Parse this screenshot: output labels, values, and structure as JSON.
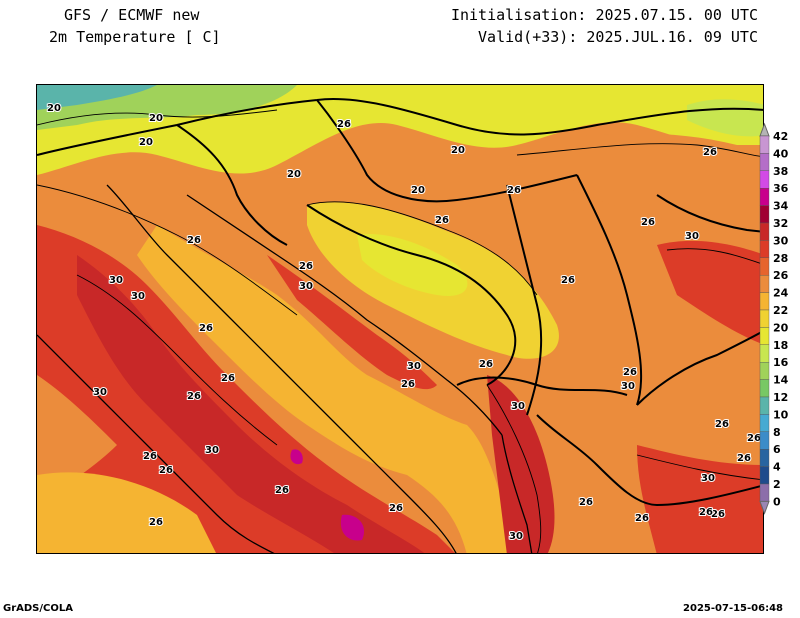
{
  "header": {
    "model_title": "GFS / ECMWF new",
    "variable_title": "2m Temperature [ C]",
    "initialisation": "Initialisation: 2025.07.15. 00 UTC",
    "valid": "Valid(+33): 2025.JUL.16. 09 UTC"
  },
  "footer": {
    "left": "GrADS/COLA",
    "right": "2025-07-15-06:48"
  },
  "colorbar": {
    "levels": [
      42,
      40,
      38,
      36,
      34,
      32,
      30,
      28,
      26,
      24,
      22,
      20,
      18,
      16,
      14,
      12,
      10,
      8,
      6,
      4,
      2,
      0
    ],
    "colors": [
      "#c896d2",
      "#b46ec8",
      "#d24be6",
      "#c8008c",
      "#a00032",
      "#c82828",
      "#dc3c28",
      "#e6642d",
      "#eb8c3c",
      "#f5b432",
      "#f0d232",
      "#e6e632",
      "#c8e650",
      "#a0d25a",
      "#78c864",
      "#5ab4aa",
      "#46aad2",
      "#3c8cc8",
      "#2864a0",
      "#1e4b8c",
      "#8c6eaa"
    ]
  },
  "map": {
    "contour_labels": [
      "20",
      "20",
      "26",
      "20",
      "20",
      "20",
      "20",
      "26",
      "26",
      "26",
      "30",
      "30",
      "26",
      "26",
      "26",
      "30",
      "30",
      "26",
      "26",
      "26",
      "26",
      "30",
      "30",
      "26",
      "26",
      "26",
      "30",
      "26",
      "30",
      "30",
      "30",
      "26",
      "26",
      "26",
      "26",
      "26",
      "26",
      "26",
      "26",
      "30",
      "30",
      "26",
      "26",
      "26"
    ]
  }
}
